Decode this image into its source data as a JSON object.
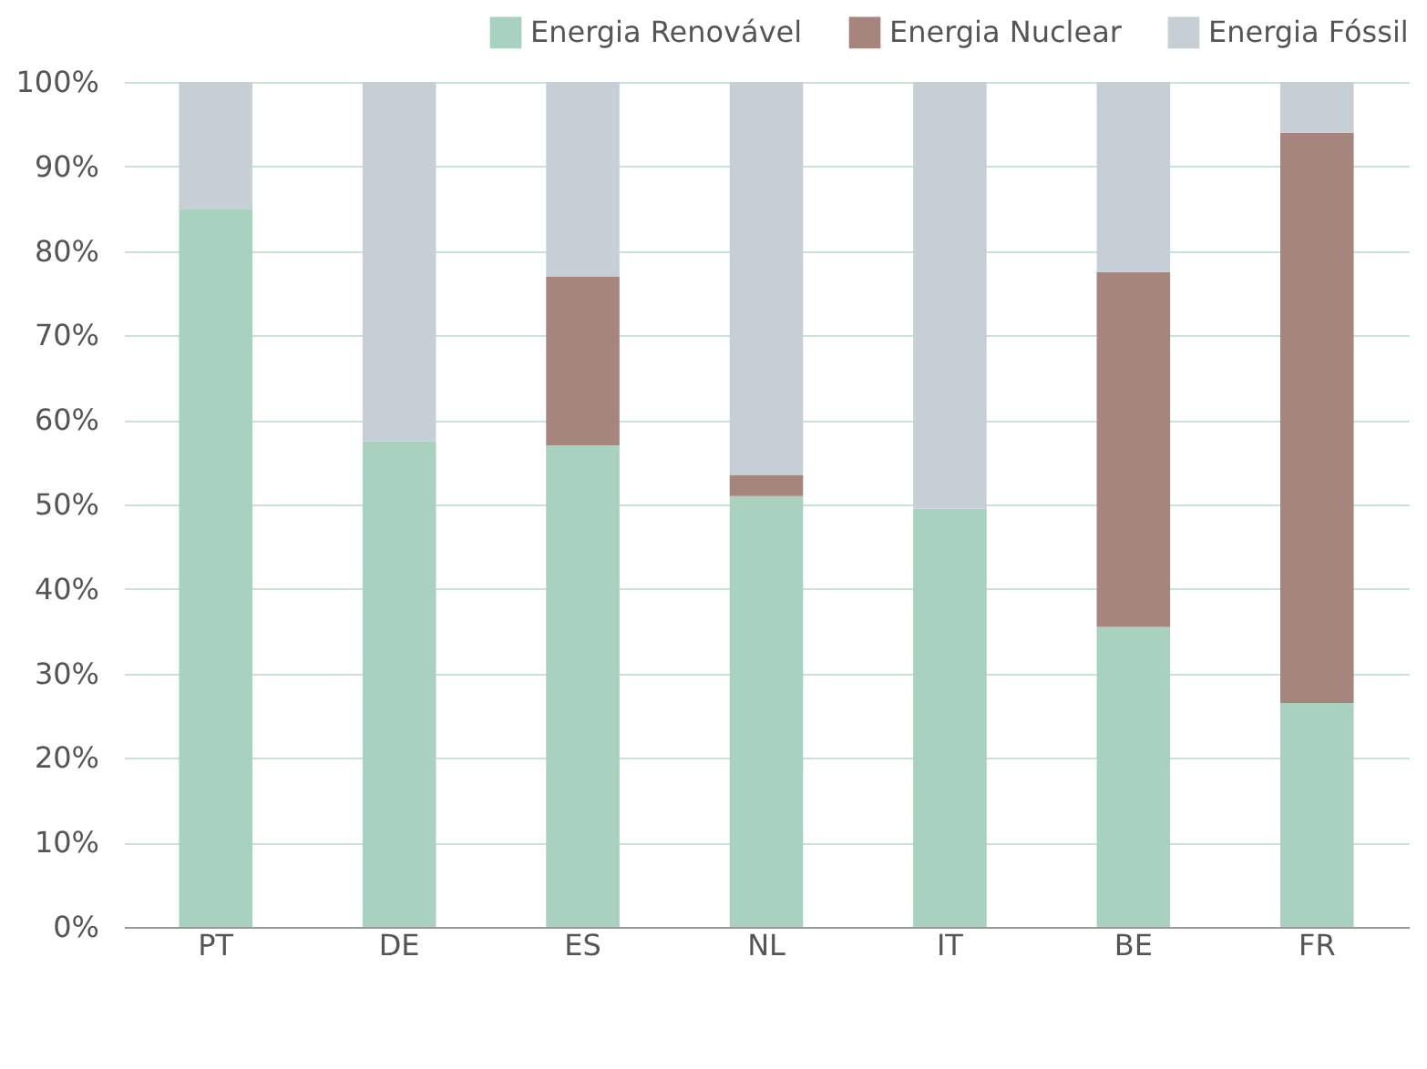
{
  "chart_data": {
    "type": "bar",
    "stacked": true,
    "categories": [
      "PT",
      "DE",
      "ES",
      "NL",
      "IT",
      "BE",
      "FR"
    ],
    "series": [
      {
        "name": "Energia Renovável",
        "color": "#a8d1bf",
        "values": [
          85,
          57.5,
          57,
          51,
          49.5,
          35.5,
          26.5
        ]
      },
      {
        "name": "Energia Nuclear",
        "color": "#a5857c",
        "values": [
          0,
          0,
          20,
          2.5,
          0,
          42,
          67.5
        ]
      },
      {
        "name": "Energia Fóssil",
        "color": "#c7cfd6",
        "values": [
          15,
          42.5,
          23,
          46.5,
          50.5,
          22.5,
          6
        ]
      }
    ],
    "ylim": [
      0,
      100
    ],
    "yticks": [
      {
        "value": 0,
        "label": "0%"
      },
      {
        "value": 10,
        "label": "10%"
      },
      {
        "value": 20,
        "label": "20%"
      },
      {
        "value": 30,
        "label": "30%"
      },
      {
        "value": 40,
        "label": "40%"
      },
      {
        "value": 50,
        "label": "50%"
      },
      {
        "value": 60,
        "label": "60%"
      },
      {
        "value": 70,
        "label": "70%"
      },
      {
        "value": 80,
        "label": "80%"
      },
      {
        "value": 90,
        "label": "90%"
      },
      {
        "value": 100,
        "label": "100%"
      }
    ],
    "grid": "y",
    "legend": "top right"
  }
}
